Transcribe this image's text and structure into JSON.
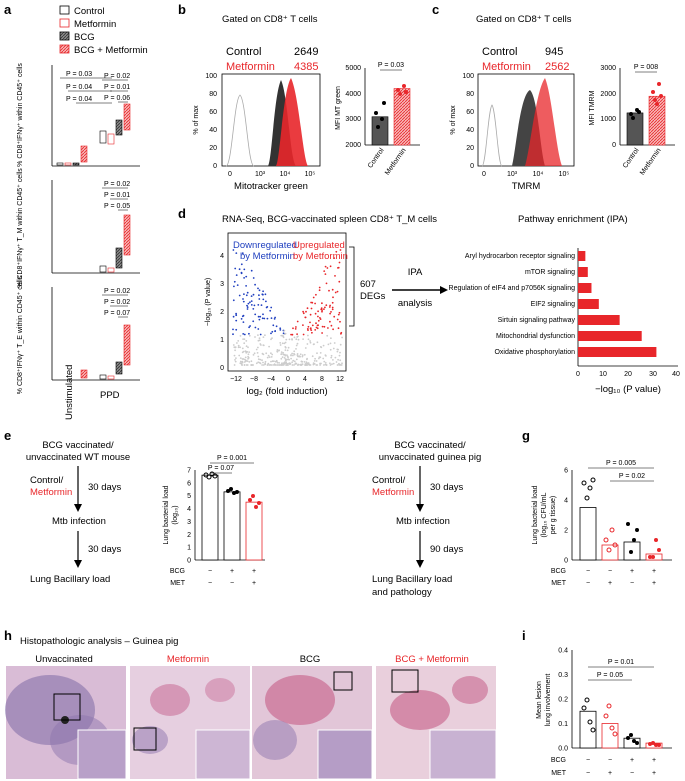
{
  "colors": {
    "red": "#e8262a",
    "pink": "#f29090",
    "grey": "#6a6a6a",
    "dark": "#333333",
    "blue": "#1f3fbf",
    "light": "#cccccc"
  },
  "panel_letters": [
    "a",
    "b",
    "c",
    "d",
    "e",
    "f",
    "g",
    "h",
    "i"
  ],
  "panel_a": {
    "legend": [
      "Control",
      "Metformin",
      "BCG",
      "BCG + Metformin"
    ],
    "categories": [
      "Unstimulated",
      "PPD"
    ],
    "plots": [
      {
        "ylabel_html": "% CD8⁺IFNγ⁺ within CD45⁺ cells",
        "pvals": [
          "P = 0.03",
          "P = 0.04",
          "P = 0.04",
          "P = 0.02",
          "P = 0.01",
          "P = 0.06"
        ]
      },
      {
        "ylabel_html": "% CD8⁺IFNγ⁺ T_M within CD45⁺ cells",
        "pvals": [
          "P = 0.02",
          "P = 0.01",
          "P = 0.05"
        ]
      },
      {
        "ylabel_html": "% CD8⁺IFNγ⁺ T_E within CD45⁺ cells",
        "pvals": [
          "P = 0.02",
          "P = 0.02",
          "P = 0.07"
        ]
      }
    ]
  },
  "panel_b": {
    "title": "Gated on CD8⁺ T cells",
    "legend": [
      {
        "label": "Control",
        "value": "2649"
      },
      {
        "label": "Metformin",
        "value": "4385"
      }
    ],
    "hist_ylabel": "% of max",
    "hist_xlabel": "Mitotracker green",
    "hist_yticks": [
      "0",
      "20",
      "40",
      "60",
      "80",
      "100"
    ],
    "hist_xticks": [
      "0",
      "10³",
      "10⁴",
      "10⁵"
    ],
    "bar_ylabel": "MFI MT green",
    "pval": "P = 0.03",
    "chart_data": {
      "type": "bar",
      "categories": [
        "Control",
        "Metformin"
      ],
      "values": [
        3100,
        4200
      ],
      "ylim": [
        2000,
        5000
      ],
      "yticks": [
        "2000",
        "3000",
        "4000",
        "5000"
      ]
    }
  },
  "panel_c": {
    "title": "Gated on CD8⁺ T cells",
    "legend": [
      {
        "label": "Control",
        "value": "945"
      },
      {
        "label": "Metformin",
        "value": "2562"
      }
    ],
    "hist_ylabel": "% of max",
    "hist_xlabel": "TMRM",
    "hist_yticks": [
      "0",
      "20",
      "40",
      "60",
      "80",
      "100"
    ],
    "hist_xticks": [
      "0",
      "10³",
      "10⁴",
      "10⁵"
    ],
    "bar_ylabel": "MFI TMRM",
    "pval": "P = 008",
    "chart_data": {
      "type": "bar",
      "categories": [
        "Control",
        "Metformin"
      ],
      "values": [
        1250,
        1900
      ],
      "ylim": [
        0,
        3000
      ],
      "yticks": [
        "0",
        "1000",
        "2000",
        "3000"
      ]
    }
  },
  "panel_d": {
    "title": "RNA-Seq, BCG-vaccinated spleen CD8⁺ T_M cells",
    "down_label": [
      "Downregulated",
      "by Metformin"
    ],
    "up_label": [
      "Upregulated",
      "by Metformin"
    ],
    "degs": [
      "607",
      "DEGs"
    ],
    "ipa": [
      "IPA",
      "analysis"
    ],
    "volcano_ylabel": "−log₁₀ (P value)",
    "volcano_xlabel": "log₂ (fold induction)",
    "volcano_xticks": [
      "−12",
      "−8",
      "−4",
      "0",
      "4",
      "8",
      "12"
    ],
    "volcano_yticks": [
      "0",
      "1",
      "2",
      "3",
      "4"
    ],
    "pathway_title": "Pathway enrichment (IPA)",
    "pathway_xlabel": "−log₁₀ (P value)",
    "chart_data": {
      "type": "bar",
      "orientation": "horizontal",
      "categories": [
        "Aryl hydrocarbon receptor signaling",
        "mTOR signaling",
        "Regulation of eIF4 and p7056K signaling",
        "EIF2 signaling",
        "Sirtuin signaling pathway",
        "Mitochondrial dysfunction",
        "Oxidative phosphorylation"
      ],
      "values": [
        3,
        4,
        5.5,
        8.5,
        17,
        26,
        32
      ],
      "xlim": [
        0,
        40
      ],
      "xticks": [
        "0",
        "10",
        "20",
        "30",
        "40"
      ]
    }
  },
  "panel_e": {
    "flow": [
      "BCG vaccinated/",
      "unvaccinated WT mouse",
      "Control/",
      "Metformin",
      "30 days",
      "Mtb infection",
      "30 days",
      "Lung Bacillary load"
    ],
    "ylabel": [
      "Lung bacterial load",
      "(log₁₀)"
    ],
    "bcg_row": [
      "BCG",
      "−",
      "+",
      "+"
    ],
    "met_row": [
      "MET",
      "−",
      "−",
      "+"
    ],
    "pvals": [
      "P = 0.001",
      "P = 0.07"
    ],
    "chart_data": {
      "type": "bar",
      "categories": [
        "BCG− MET−",
        "BCG+ MET−",
        "BCG+ MET+"
      ],
      "values": [
        6.6,
        5.3,
        4.5
      ],
      "ylim": [
        0,
        7
      ],
      "yticks": [
        "0",
        "1",
        "2",
        "3",
        "4",
        "5",
        "6",
        "7"
      ]
    }
  },
  "panel_f": {
    "flow": [
      "BCG vaccinated/",
      "unvaccinated guinea pig",
      "Control/",
      "Metformin",
      "30 days",
      "Mtb infection",
      "90 days",
      "Lung Bacillary load",
      "and pathology"
    ]
  },
  "panel_g": {
    "ylabel": [
      "Lung bacterial load",
      "(log₁₀ CFU/mL",
      "per g tissue)"
    ],
    "bcg_row": [
      "BCG",
      "−",
      "−",
      "+",
      "+"
    ],
    "met_row": [
      "MET",
      "−",
      "+",
      "−",
      "+"
    ],
    "pvals": [
      "P = 0.005",
      "P = 0.02"
    ],
    "chart_data": {
      "type": "bar",
      "categories": [
        "BCG− MET−",
        "BCG− MET+",
        "BCG+ MET−",
        "BCG+ MET+"
      ],
      "values": [
        3.5,
        1.0,
        1.2,
        0.4
      ],
      "ylim": [
        0,
        6
      ],
      "yticks": [
        "0",
        "2",
        "4",
        "6"
      ]
    }
  },
  "panel_h": {
    "title": "Histopathologic analysis – Guinea pig",
    "labels": [
      "Unvaccinated",
      "Metformin",
      "BCG",
      "BCG + Metformin"
    ]
  },
  "panel_i": {
    "ylabel": [
      "Mean lesion",
      "lung involvement"
    ],
    "bcg_row": [
      "BCG",
      "−",
      "−",
      "+",
      "+"
    ],
    "met_row": [
      "MET",
      "−",
      "+",
      "−",
      "+"
    ],
    "pvals": [
      "P = 0.01",
      "P = 0.05"
    ],
    "chart_data": {
      "type": "bar",
      "categories": [
        "BCG− MET−",
        "BCG− MET+",
        "BCG+ MET−",
        "BCG+ MET+"
      ],
      "values": [
        0.15,
        0.1,
        0.04,
        0.02
      ],
      "ylim": [
        0,
        0.4
      ],
      "yticks": [
        "0.0",
        "0.1",
        "0.2",
        "0.3",
        "0.4"
      ]
    }
  }
}
